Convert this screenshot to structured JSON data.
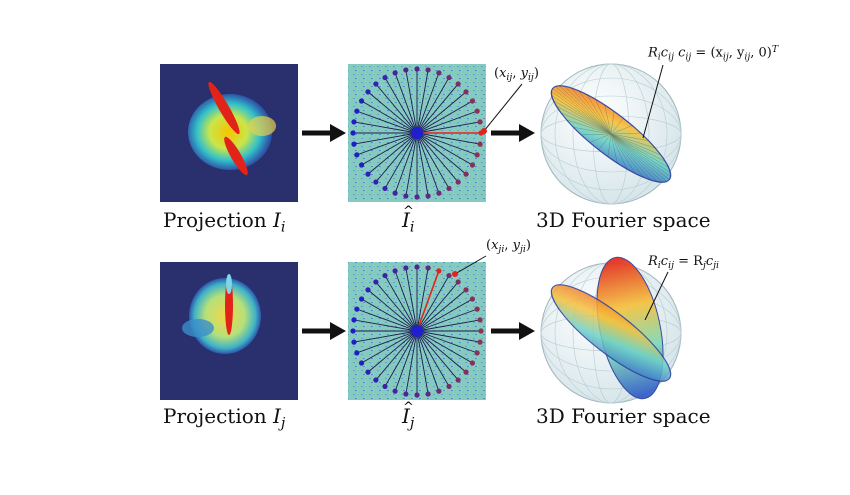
{
  "rows": [
    {
      "projection_caption": {
        "prefix": "Projection ",
        "var": "I",
        "sub": "i"
      },
      "fourier_caption": {
        "var": "I",
        "sub": "i"
      },
      "sphere_caption": "3D Fourier space",
      "point_label": {
        "x": "x",
        "xsub": "ij",
        "y": "y",
        "ysub": "ij"
      },
      "sphere_label": {
        "text": "R",
        "parts": [
          "i",
          "c",
          "ij",
          "c",
          "ij",
          "= (x",
          "ij",
          ", y",
          "ij",
          ", 0)",
          "T"
        ]
      }
    },
    {
      "projection_caption": {
        "prefix": "Projection ",
        "var": "I",
        "sub": "j"
      },
      "fourier_caption": {
        "var": "I",
        "sub": "j"
      },
      "sphere_caption": "3D Fourier space",
      "point_label": {
        "x": "x",
        "xsub": "ji",
        "y": "y",
        "ysub": "ji"
      },
      "sphere_label": {
        "text": "R",
        "parts": [
          "i",
          "c",
          "ij",
          "= R",
          "j",
          "c",
          "ji"
        ]
      }
    }
  ],
  "colors": {
    "projection_bg": "#2a2f6e",
    "fourier_bg": "#7fc6bf",
    "arrow": "#111111",
    "highlight_line": "#e2231a"
  },
  "icons": [
    "right-arrow-icon"
  ]
}
